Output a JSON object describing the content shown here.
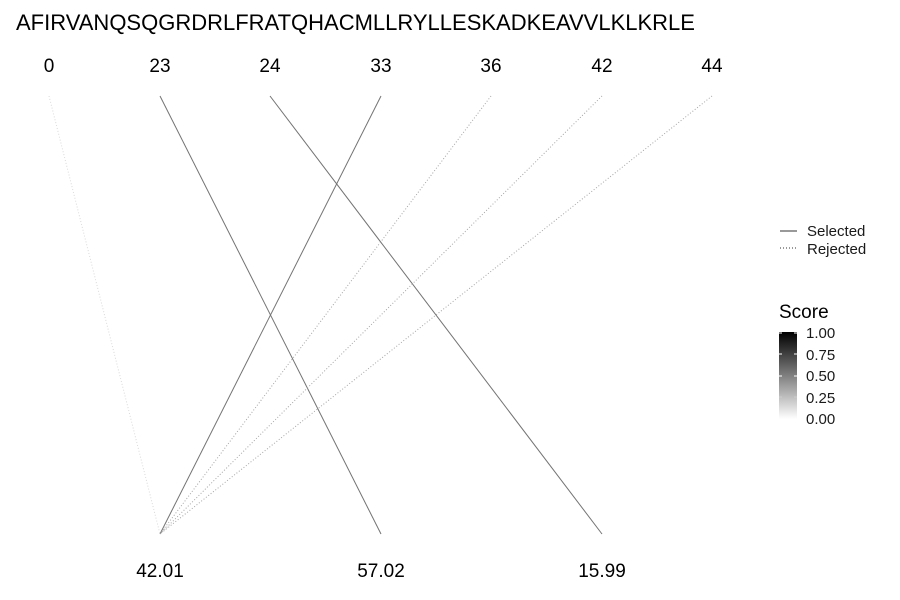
{
  "sequence": "AFIRVANQSQGRDRLFRATQHACMLLRYLLESKADKEAVVLKLKRLE",
  "top_labels": [
    "0",
    "23",
    "24",
    "33",
    "36",
    "42",
    "44"
  ],
  "bottom_labels": [
    "42.01",
    "57.02",
    "15.99"
  ],
  "connections": [
    {
      "from": 0,
      "to": 0,
      "status": "rejected",
      "score": 0.15
    },
    {
      "from": 1,
      "to": 1,
      "status": "selected",
      "score": 0.55
    },
    {
      "from": 2,
      "to": 2,
      "status": "selected",
      "score": 0.55
    },
    {
      "from": 3,
      "to": 0,
      "status": "selected",
      "score": 0.55
    },
    {
      "from": 4,
      "to": 0,
      "status": "rejected",
      "score": 0.35
    },
    {
      "from": 5,
      "to": 0,
      "status": "rejected",
      "score": 0.35
    },
    {
      "from": 6,
      "to": 0,
      "status": "rejected",
      "score": 0.35
    }
  ],
  "legend": {
    "linetype": {
      "selected_label": "Selected",
      "rejected_label": "Rejected"
    },
    "score": {
      "title": "Score",
      "ticks": [
        "1.00",
        "0.75",
        "0.50",
        "0.25",
        "0.00"
      ],
      "color_high": "#000000",
      "color_low": "#ffffff"
    }
  }
}
